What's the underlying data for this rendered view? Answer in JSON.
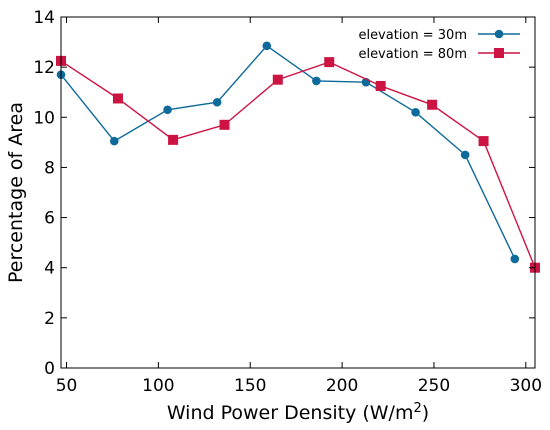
{
  "chart_data": {
    "type": "line",
    "title": "",
    "xlabel": "Wind Power Density (W/m",
    "xlabel_superscript": "2",
    "xlabel_close": ")",
    "ylabel": "Percentage of Area",
    "xlim": [
      47,
      305
    ],
    "ylim": [
      0,
      14
    ],
    "x_ticks": [
      50,
      100,
      150,
      200,
      250,
      300
    ],
    "y_ticks": [
      0,
      2,
      4,
      6,
      8,
      10,
      12,
      14
    ],
    "grid": false,
    "legend": "top-right",
    "series": [
      {
        "name": "elevation = 30m",
        "color": "#0e6a9a",
        "marker": "circle",
        "x": [
          47,
          76,
          105,
          132,
          159,
          186,
          213,
          240,
          267,
          294
        ],
        "y": [
          11.7,
          9.05,
          10.3,
          10.6,
          12.85,
          11.45,
          11.4,
          10.2,
          8.5,
          4.35
        ]
      },
      {
        "name": "elevation = 80m",
        "color": "#cc1342",
        "marker": "square",
        "x": [
          47,
          78,
          108,
          136,
          165,
          193,
          221,
          249,
          277,
          305
        ],
        "y": [
          12.25,
          10.75,
          9.1,
          9.7,
          11.5,
          12.2,
          11.25,
          10.5,
          9.05,
          4.0
        ]
      }
    ]
  }
}
